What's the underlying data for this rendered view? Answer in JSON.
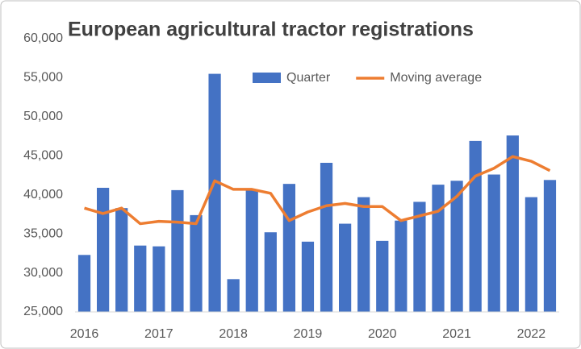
{
  "chart_data": {
    "type": "bar_line",
    "title": "European agricultural tractor registrations",
    "categories": [
      "2016",
      null,
      null,
      null,
      "2017",
      null,
      null,
      null,
      "2018",
      null,
      null,
      null,
      "2019",
      null,
      null,
      null,
      "2020",
      null,
      null,
      null,
      "2021",
      null,
      null,
      null,
      "2022",
      null
    ],
    "series": [
      {
        "name": "Quarter",
        "type": "bar",
        "color": "#4472c4",
        "values": [
          32300,
          40900,
          38300,
          33500,
          33400,
          40600,
          37400,
          55500,
          29200,
          40600,
          35200,
          41400,
          34000,
          44100,
          36300,
          39700,
          34100,
          36700,
          39100,
          41300,
          41800,
          46900,
          42600,
          47600,
          39700,
          41900
        ]
      },
      {
        "name": "Moving average",
        "type": "line",
        "color": "#ed7d31",
        "values": [
          38300,
          37600,
          38300,
          36300,
          36600,
          36500,
          36300,
          41800,
          40700,
          40700,
          40200,
          36700,
          37800,
          38600,
          38900,
          38500,
          38500,
          36700,
          37300,
          37900,
          39800,
          42400,
          43400,
          44900,
          44300,
          43100
        ]
      }
    ],
    "ylim": [
      25000,
      60000
    ],
    "yticks": [
      {
        "value": 25000,
        "label": "25,000"
      },
      {
        "value": 30000,
        "label": "30,000"
      },
      {
        "value": 35000,
        "label": "35,000"
      },
      {
        "value": 40000,
        "label": "40,000"
      },
      {
        "value": 45000,
        "label": "45,000"
      },
      {
        "value": 50000,
        "label": "50,000"
      },
      {
        "value": 55000,
        "label": "55,000"
      },
      {
        "value": 60000,
        "label": "60,000"
      }
    ],
    "grid": false,
    "legend": "top"
  }
}
